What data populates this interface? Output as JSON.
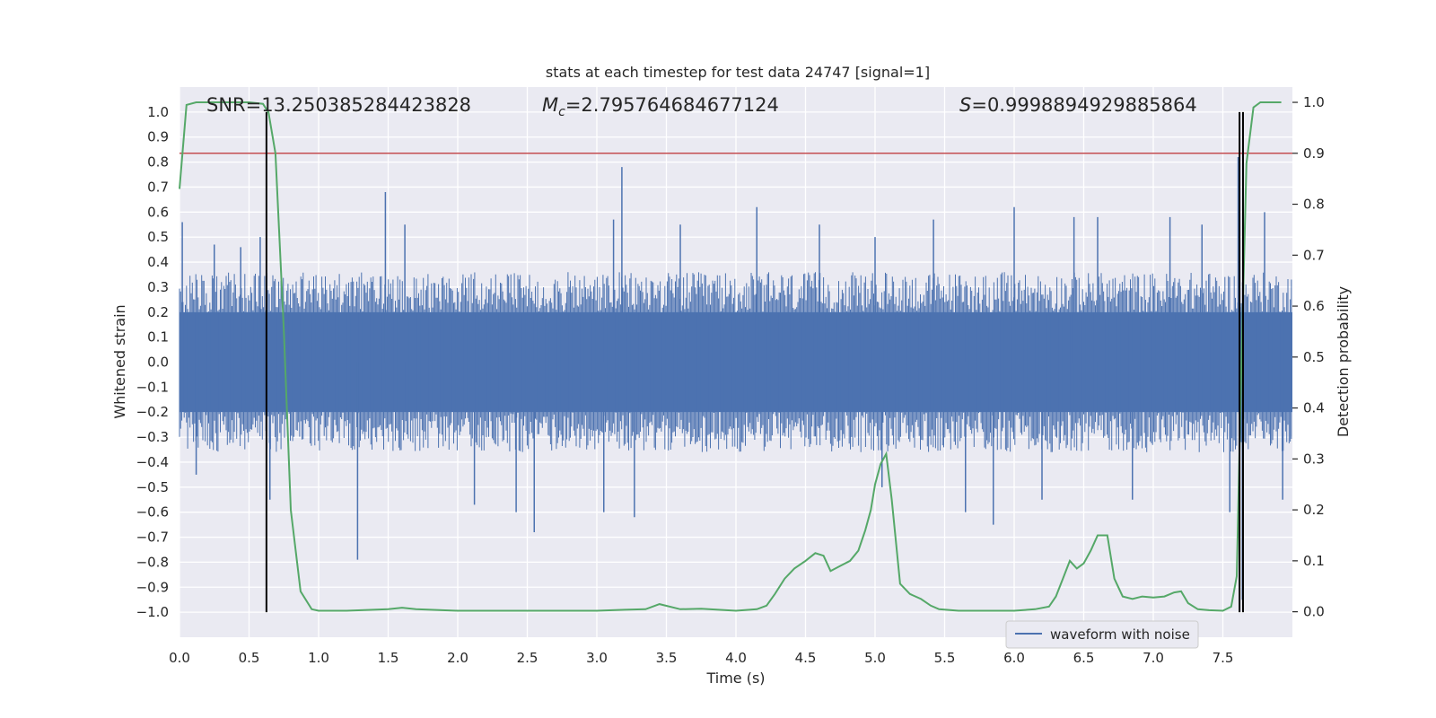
{
  "chart_data": {
    "type": "line",
    "title": "stats at each timestep for test data 24747 [signal=1]",
    "xlabel": "Time (s)",
    "ylabel": "Whitened strain",
    "y2label": "Detection probability",
    "xlim": [
      0.0,
      8.0
    ],
    "ylim": [
      -1.1,
      1.1
    ],
    "y2lim": [
      -0.05,
      1.03
    ],
    "xticks": [
      0.0,
      0.5,
      1.0,
      1.5,
      2.0,
      2.5,
      3.0,
      3.5,
      4.0,
      4.5,
      5.0,
      5.5,
      6.0,
      6.5,
      7.0,
      7.5
    ],
    "yticks": [
      -1.0,
      -0.9,
      -0.8,
      -0.7,
      -0.6,
      -0.5,
      -0.4,
      -0.3,
      -0.2,
      -0.1,
      0.0,
      0.1,
      0.2,
      0.3,
      0.4,
      0.5,
      0.6,
      0.7,
      0.8,
      0.9,
      1.0
    ],
    "y2ticks": [
      0.0,
      0.1,
      0.2,
      0.3,
      0.4,
      0.5,
      0.6,
      0.7,
      0.8,
      0.9,
      1.0
    ],
    "grid": true,
    "legend": {
      "placement": "lower-right",
      "entries": [
        "waveform with noise"
      ]
    },
    "annotations": {
      "snr": "SNR=13.250385284423828",
      "mc_symbol": "M",
      "mc_sub": "c",
      "mc_value": "=2.795764684677124",
      "s_symbol": "S",
      "s_value": "=0.9998894929885864"
    },
    "threshold": {
      "axis": "y2",
      "value": 0.9,
      "color": "#c44e52"
    },
    "vertical_markers": [
      0.625,
      7.62,
      7.645
    ],
    "colors": {
      "waveform": "#4c72b0",
      "probability": "#55a868",
      "threshold": "#c44e52",
      "marker": "#000000",
      "background": "#eaeaf2"
    },
    "series": [
      {
        "name": "waveform with noise",
        "axis": "y",
        "color": "#4c72b0",
        "style": "noise",
        "envelope_typical": 0.3,
        "spikes": [
          {
            "x": 0.02,
            "y": 0.56
          },
          {
            "x": 0.12,
            "y": -0.45
          },
          {
            "x": 0.25,
            "y": 0.47
          },
          {
            "x": 0.44,
            "y": 0.46
          },
          {
            "x": 0.58,
            "y": 0.5
          },
          {
            "x": 0.65,
            "y": -0.55
          },
          {
            "x": 1.28,
            "y": -0.79
          },
          {
            "x": 1.48,
            "y": 0.68
          },
          {
            "x": 1.62,
            "y": 0.55
          },
          {
            "x": 2.12,
            "y": -0.57
          },
          {
            "x": 2.42,
            "y": -0.6
          },
          {
            "x": 2.55,
            "y": -0.68
          },
          {
            "x": 3.05,
            "y": -0.6
          },
          {
            "x": 3.12,
            "y": 0.57
          },
          {
            "x": 3.18,
            "y": 0.78
          },
          {
            "x": 3.27,
            "y": -0.62
          },
          {
            "x": 3.6,
            "y": 0.55
          },
          {
            "x": 4.15,
            "y": 0.62
          },
          {
            "x": 4.6,
            "y": 0.55
          },
          {
            "x": 5.0,
            "y": 0.5
          },
          {
            "x": 5.05,
            "y": -0.5
          },
          {
            "x": 5.42,
            "y": 0.57
          },
          {
            "x": 5.65,
            "y": -0.6
          },
          {
            "x": 5.85,
            "y": -0.65
          },
          {
            "x": 6.0,
            "y": 0.62
          },
          {
            "x": 6.2,
            "y": -0.55
          },
          {
            "x": 6.43,
            "y": 0.58
          },
          {
            "x": 6.6,
            "y": 0.58
          },
          {
            "x": 6.85,
            "y": -0.55
          },
          {
            "x": 7.12,
            "y": 0.58
          },
          {
            "x": 7.35,
            "y": 0.55
          },
          {
            "x": 7.55,
            "y": -0.6
          },
          {
            "x": 7.61,
            "y": 0.82
          },
          {
            "x": 7.64,
            "y": -0.95
          },
          {
            "x": 7.8,
            "y": 0.6
          },
          {
            "x": 7.93,
            "y": -0.55
          }
        ]
      },
      {
        "name": "",
        "axis": "y2",
        "color": "#55a868",
        "x": [
          0.0,
          0.05,
          0.12,
          0.3,
          0.5,
          0.6,
          0.64,
          0.69,
          0.75,
          0.8,
          0.87,
          0.95,
          1.0,
          1.2,
          1.5,
          1.6,
          1.7,
          2.0,
          2.3,
          2.6,
          3.0,
          3.2,
          3.35,
          3.45,
          3.6,
          3.75,
          4.0,
          4.15,
          4.22,
          4.28,
          4.35,
          4.42,
          4.5,
          4.57,
          4.63,
          4.68,
          4.75,
          4.82,
          4.88,
          4.93,
          4.97,
          5.0,
          5.04,
          5.08,
          5.12,
          5.18,
          5.25,
          5.33,
          5.4,
          5.46,
          5.6,
          5.8,
          6.0,
          6.15,
          6.25,
          6.3,
          6.35,
          6.4,
          6.45,
          6.5,
          6.55,
          6.6,
          6.67,
          6.72,
          6.78,
          6.85,
          6.92,
          7.0,
          7.08,
          7.15,
          7.2,
          7.25,
          7.32,
          7.4,
          7.5,
          7.56,
          7.6,
          7.63,
          7.67,
          7.72,
          7.77,
          7.83,
          7.92
        ],
        "values": [
          0.83,
          0.995,
          1.0,
          1.0,
          1.0,
          0.997,
          0.98,
          0.9,
          0.55,
          0.2,
          0.04,
          0.005,
          0.002,
          0.002,
          0.005,
          0.008,
          0.005,
          0.002,
          0.002,
          0.002,
          0.002,
          0.004,
          0.005,
          0.015,
          0.005,
          0.006,
          0.002,
          0.005,
          0.012,
          0.035,
          0.065,
          0.085,
          0.1,
          0.115,
          0.11,
          0.08,
          0.09,
          0.1,
          0.12,
          0.16,
          0.2,
          0.25,
          0.29,
          0.31,
          0.22,
          0.055,
          0.035,
          0.025,
          0.012,
          0.005,
          0.002,
          0.002,
          0.002,
          0.005,
          0.01,
          0.03,
          0.065,
          0.1,
          0.085,
          0.095,
          0.12,
          0.15,
          0.15,
          0.065,
          0.03,
          0.025,
          0.03,
          0.028,
          0.03,
          0.038,
          0.04,
          0.017,
          0.005,
          0.003,
          0.002,
          0.01,
          0.07,
          0.45,
          0.88,
          0.99,
          1.0,
          1.0,
          1.0
        ]
      }
    ]
  }
}
